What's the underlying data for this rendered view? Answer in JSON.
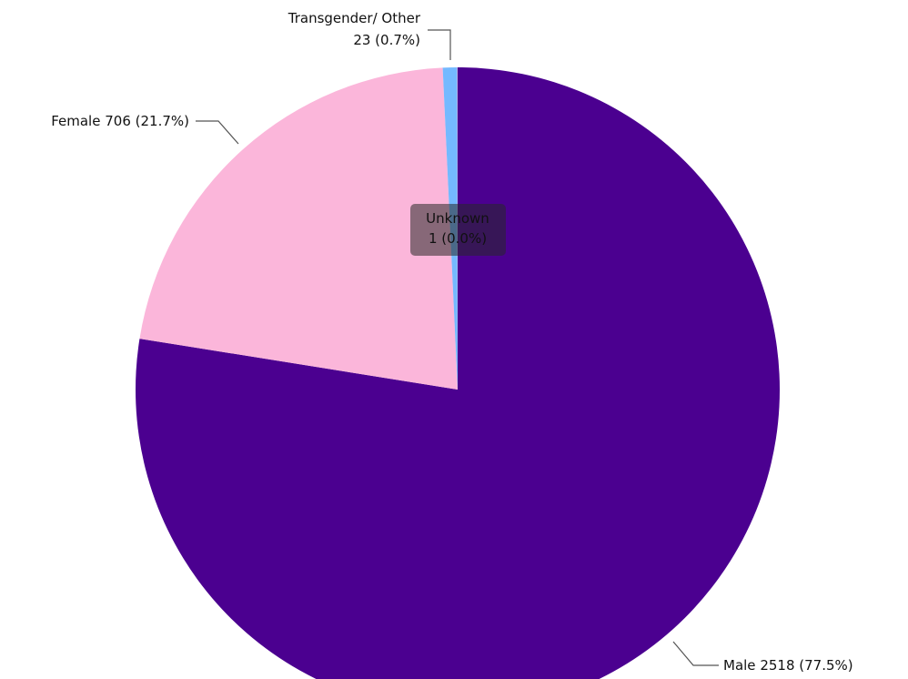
{
  "chart_data": {
    "type": "pie",
    "categories": [
      "Male",
      "Female",
      "Transgender/ Other",
      "Unknown"
    ],
    "values": [
      2518,
      706,
      23,
      1
    ],
    "value_labels": [
      "2518 (77.5%)",
      "706 (21.7%)",
      "23 (0.7%)",
      "1 (0.0%)"
    ],
    "colors": [
      "#4b0090",
      "#fbb6da",
      "#74b9ff",
      "#b8a3d9"
    ]
  }
}
